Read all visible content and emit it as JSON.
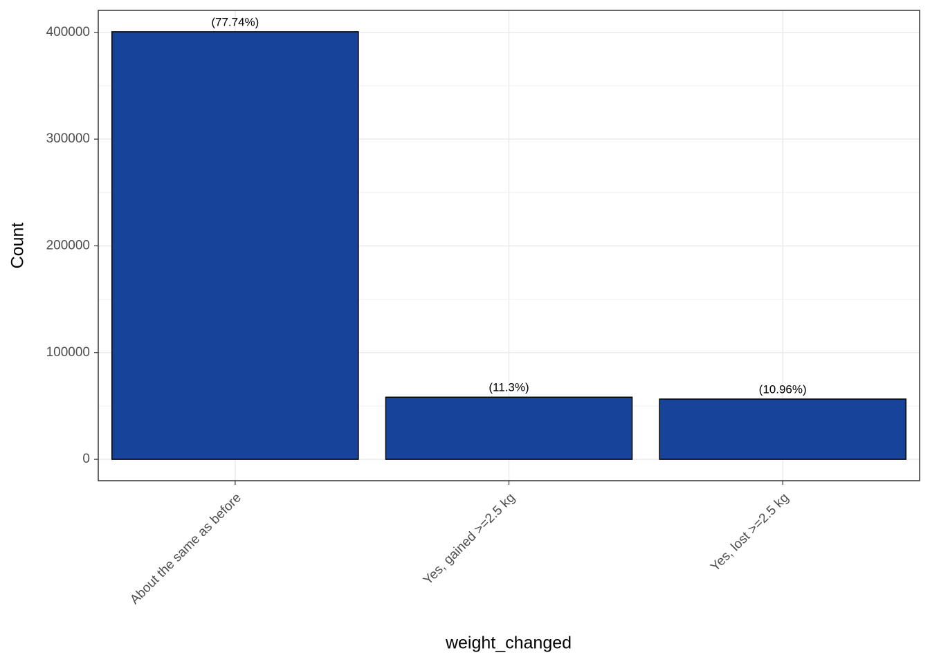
{
  "chart_data": {
    "type": "bar",
    "x_label": "weight_changed",
    "y_label": "Count",
    "categories": [
      "About the same as before",
      "Yes, gained >=2.5 kg",
      "Yes, lost >=2.5 kg"
    ],
    "values": [
      400600,
      58230,
      56480
    ],
    "annotations": [
      "(77.74%)",
      "(11.3%)",
      "(10.96%)"
    ],
    "color": "#17439b",
    "ylim": [
      -20030,
      420630
    ],
    "yticks": [
      0,
      100000,
      200000,
      300000,
      400000
    ],
    "minor_yticks": [
      50000,
      150000,
      250000,
      350000
    ],
    "grid": true
  }
}
